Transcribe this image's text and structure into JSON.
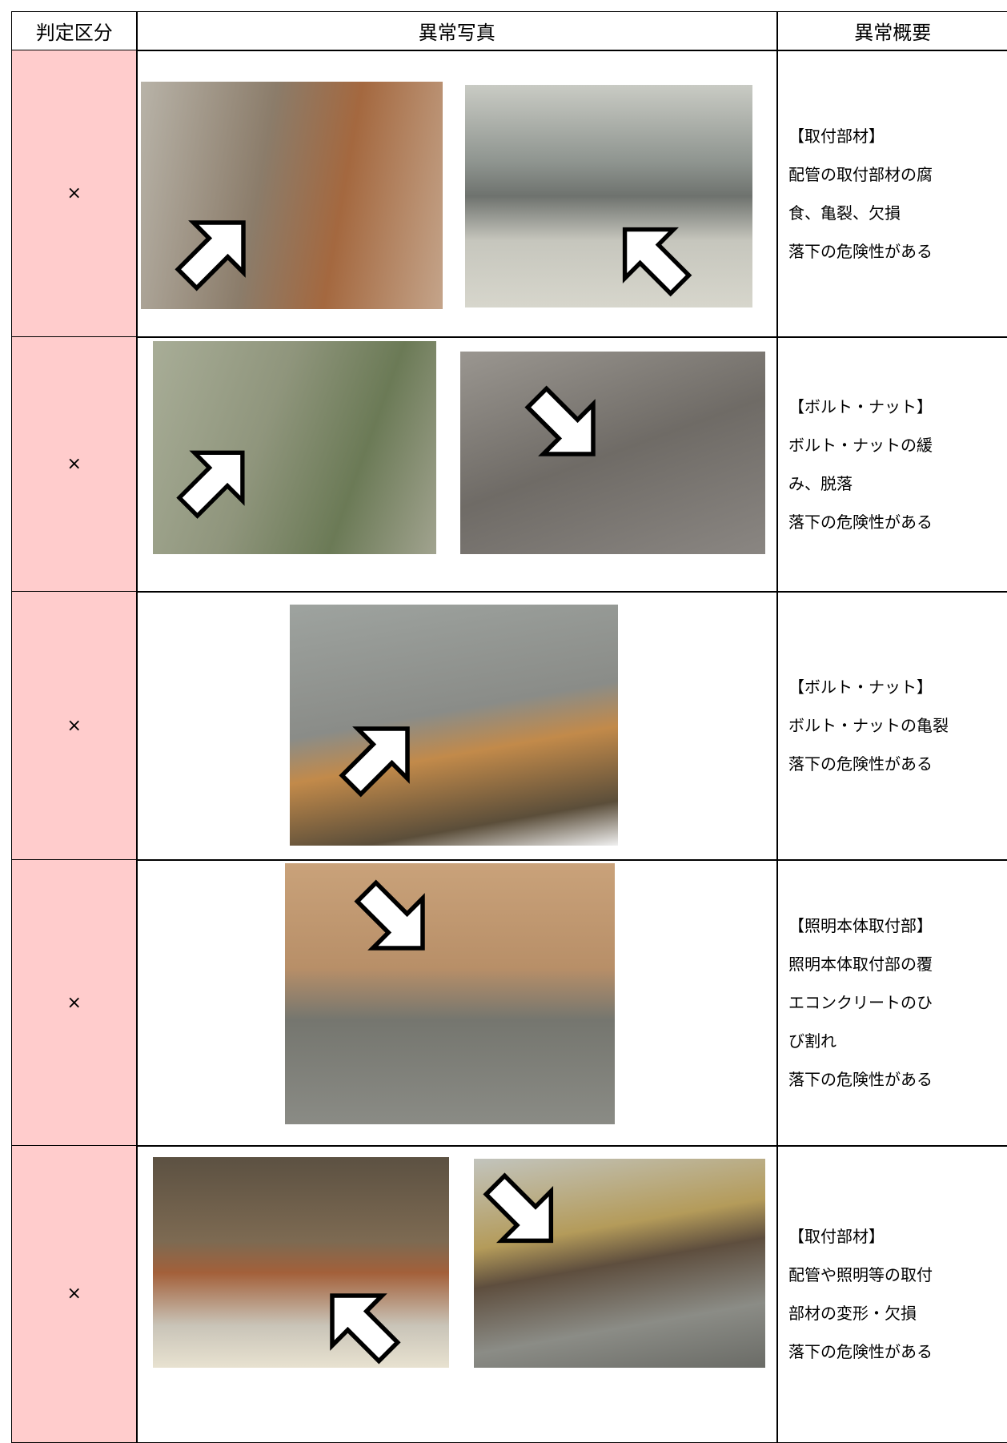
{
  "table": {
    "header": [
      "判定区分",
      "異常写真",
      "異常概要"
    ],
    "rows": [
      {
        "grade": "×",
        "summary": [
          "【取付部材】",
          "配管の取付部材の腐",
          "食、亀裂、欠損",
          "落下の危険性がある"
        ]
      },
      {
        "grade": "×",
        "summary": [
          "【ボルト・ナット】",
          "ボルト・ナットの緩",
          "み、脱落",
          "落下の危険性がある"
        ]
      },
      {
        "grade": "×",
        "summary": [
          "【ボルト・ナット】",
          "ボルト・ナットの亀裂",
          "落下の危険性がある"
        ]
      },
      {
        "grade": "×",
        "summary": [
          "【照明本体取付部】",
          "照明本体取付部の覆",
          "エコンクリートのひ",
          "び割れ",
          "落下の危険性がある"
        ]
      },
      {
        "grade": "×",
        "summary": [
          "【取付部材】",
          "配管や照明等の取付",
          "部材の変形・欠損",
          "落下の危険性がある"
        ]
      }
    ]
  }
}
